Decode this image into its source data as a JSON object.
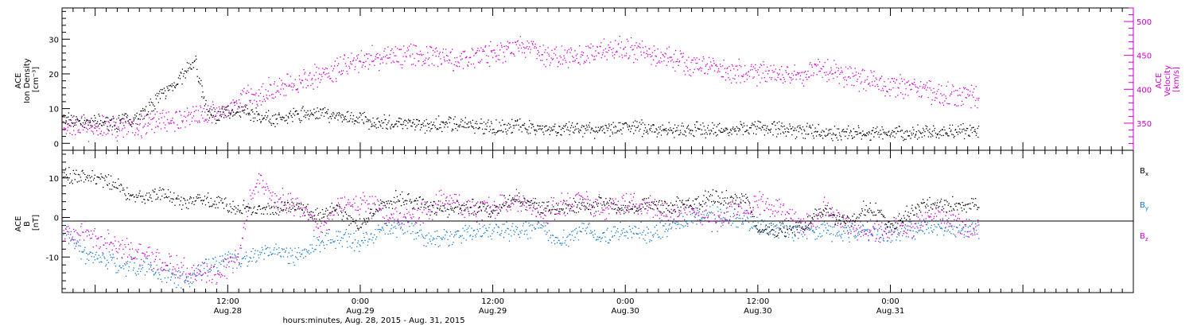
{
  "chart_data": [
    {
      "type": "scatter",
      "panel": "top",
      "left_axis": {
        "label_lines": [
          "ACE",
          "Ion Density",
          "[cm⁻³]"
        ],
        "ticks": [
          "0",
          "10",
          "20",
          "30"
        ],
        "ylim": [
          -2,
          39
        ]
      },
      "right_axis": {
        "label_lines": [
          "ACE",
          "Velocity",
          "[km/s]"
        ],
        "ticks": [
          "350",
          "400",
          "450",
          "500"
        ],
        "ylim": [
          310,
          520
        ]
      },
      "x_hours_range": [
        -15,
        82
      ],
      "series": [
        {
          "axis": "left",
          "color": "#000000",
          "x_hours": [
            -15,
            -12,
            -10,
            -8,
            -6,
            -4,
            -3,
            -2,
            -1,
            0,
            1,
            2,
            3,
            4,
            6,
            8,
            10,
            12,
            14,
            16,
            18,
            20,
            22,
            24,
            27,
            30,
            33,
            36,
            39,
            42,
            45,
            48,
            51,
            54,
            57,
            60,
            63,
            66,
            68
          ],
          "y": [
            7,
            6,
            6,
            8,
            14,
            20,
            24,
            10,
            8,
            9,
            10,
            9,
            8,
            7,
            8,
            9,
            8,
            7,
            6,
            6,
            5,
            6,
            5,
            5,
            5,
            4,
            4,
            5,
            4,
            4,
            4,
            5,
            4,
            3,
            3,
            3,
            3,
            4,
            3
          ]
        },
        {
          "axis": "right",
          "color": "#cc00cc",
          "x_hours": [
            -15,
            -12,
            -9,
            -6,
            -3,
            0,
            3,
            6,
            9,
            12,
            15,
            18,
            21,
            24,
            27,
            30,
            33,
            36,
            39,
            42,
            45,
            48,
            51,
            54,
            57,
            60,
            63,
            66,
            68
          ],
          "y": [
            345,
            343,
            346,
            352,
            360,
            373,
            395,
            410,
            425,
            445,
            450,
            450,
            445,
            455,
            465,
            445,
            455,
            460,
            450,
            438,
            430,
            425,
            420,
            430,
            415,
            405,
            400,
            393,
            388
          ]
        }
      ]
    },
    {
      "type": "scatter",
      "panel": "bottom",
      "axis": {
        "label_lines": [
          "ACE",
          "B",
          "[nT]"
        ],
        "ticks": [
          "-10",
          "0",
          "10"
        ],
        "ylim": [
          -19,
          17
        ]
      },
      "x_hours_range": [
        -15,
        82
      ],
      "x_ticks": [
        {
          "hour": 0,
          "time": "12:00",
          "date": "Aug.28"
        },
        {
          "hour": 12,
          "time": "0:00",
          "date": "Aug.29"
        },
        {
          "hour": 24,
          "time": "12:00",
          "date": "Aug.29"
        },
        {
          "hour": 36,
          "time": "0:00",
          "date": "Aug.30"
        },
        {
          "hour": 48,
          "time": "12:00",
          "date": "Aug.30"
        },
        {
          "hour": 60,
          "time": "0:00",
          "date": "Aug.31"
        }
      ],
      "xlabel": "hours:minutes, Aug. 28, 2015 - Aug. 31, 2015",
      "series": [
        {
          "name_main": "B",
          "name_sub": "x",
          "color": "#000000",
          "x_hours": [
            -15,
            -12,
            -10,
            -8,
            -6,
            -4,
            -2,
            0,
            2,
            4,
            6,
            8,
            10,
            12,
            14,
            16,
            18,
            20,
            22,
            24,
            26,
            28,
            30,
            32,
            34,
            36,
            38,
            40,
            42,
            44,
            46,
            47,
            48,
            50,
            52,
            54,
            56,
            58,
            60,
            62,
            64,
            66,
            68
          ],
          "y": [
            11,
            10,
            8,
            5,
            6,
            4,
            5,
            3,
            2,
            2,
            3,
            1,
            2,
            -2,
            4,
            5,
            3,
            2,
            3,
            2,
            5,
            3,
            2,
            3,
            4,
            2,
            4,
            3,
            4,
            5,
            5,
            5,
            -3,
            -3,
            -2,
            2,
            -1,
            3,
            -2,
            2,
            4,
            3,
            3
          ]
        },
        {
          "name_main": "B",
          "name_sub": "y",
          "color": "#1177cc",
          "x_hours": [
            -15,
            -14,
            -13,
            -12,
            -10,
            -8,
            -6,
            -4,
            -2,
            0,
            2,
            4,
            6,
            8,
            10,
            12,
            14,
            16,
            18,
            20,
            22,
            24,
            26,
            28,
            30,
            32,
            34,
            36,
            38,
            40,
            42,
            44,
            46,
            48,
            50,
            52,
            54,
            56,
            58,
            60,
            62,
            64,
            66,
            68
          ],
          "y": [
            -2,
            -6,
            -9,
            -10,
            -12,
            -12,
            -14,
            -16,
            -12,
            -11,
            -10,
            -8,
            -10,
            -6,
            -5,
            -6,
            -3,
            -2,
            -5,
            -5,
            -4,
            -3,
            -4,
            -2,
            -6,
            -3,
            -5,
            -3,
            -4,
            -2,
            0,
            1,
            0,
            -2,
            -3,
            -4,
            -3,
            -4,
            -3,
            -4,
            -3,
            -2,
            -3,
            -3
          ]
        },
        {
          "name_main": "B",
          "name_sub": "z",
          "color": "#cc00cc",
          "x_hours": [
            -15,
            -13,
            -11,
            -9,
            -7,
            -5,
            -3,
            -1,
            0,
            1,
            2,
            3,
            4,
            6,
            8,
            10,
            12,
            14,
            16,
            18,
            20,
            22,
            24,
            26,
            28,
            30,
            32,
            34,
            36,
            38,
            40,
            42,
            44,
            46,
            48,
            50,
            52,
            54,
            56,
            58,
            60,
            62,
            64,
            66,
            68
          ],
          "y": [
            -3,
            -4,
            -6,
            -8,
            -10,
            -12,
            -14,
            -15,
            -12,
            -10,
            6,
            10,
            5,
            3,
            -2,
            2,
            4,
            2,
            0,
            2,
            5,
            2,
            3,
            5,
            1,
            3,
            5,
            2,
            4,
            3,
            1,
            2,
            -1,
            2,
            4,
            3,
            -2,
            2,
            -2,
            -4,
            -2,
            -3,
            2,
            -2,
            -2
          ]
        }
      ]
    }
  ]
}
